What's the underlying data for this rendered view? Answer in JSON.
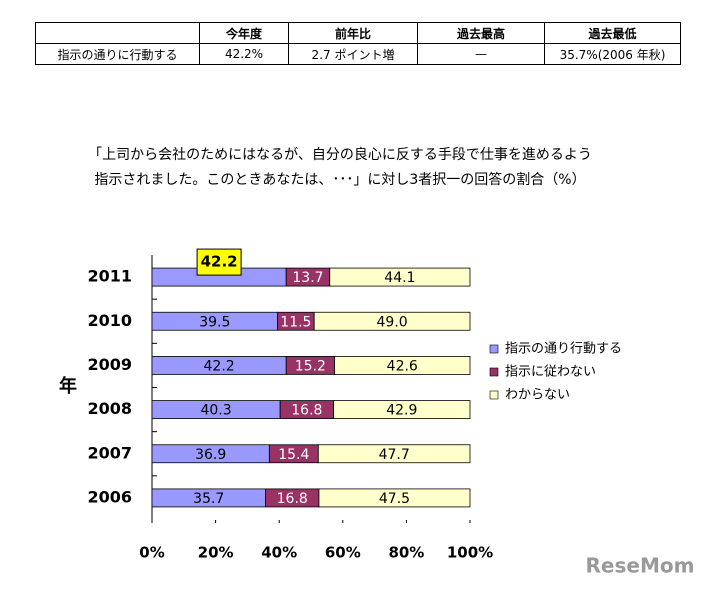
{
  "table": {
    "columns": [
      "今年度",
      "前年比",
      "過去最高",
      "過去最低"
    ],
    "rows": [
      [
        "指示の通りに行動する",
        "42.2%",
        "2.7 ポイント増",
        "—",
        "35.7%(2006 年秋)"
      ]
    ]
  },
  "chart_data": {
    "type": "stacked_bar_horizontal",
    "title": [
      "「上司から会社のためにはなるが、自分の良心に反する手段で仕事を進めるよう",
      "指示されました。このときあなたは、･･･」に対し3者択一の回答の割合（%）"
    ],
    "y_label": "年",
    "categories": [
      "2011",
      "2010",
      "2009",
      "2008",
      "2007",
      "2006"
    ],
    "series": [
      {
        "name": "指示の通り行動する",
        "color": "#9999ff",
        "values": [
          42.2,
          39.5,
          42.2,
          40.3,
          36.9,
          35.7
        ]
      },
      {
        "name": "指示に従わない",
        "color": "#993366",
        "values": [
          13.7,
          11.5,
          15.2,
          16.8,
          15.4,
          16.8
        ]
      },
      {
        "name": "わからない",
        "color": "#ffffcc",
        "values": [
          44.1,
          49.0,
          42.6,
          42.9,
          47.7,
          47.5
        ],
        "value_labels": [
          "44.1",
          "49.0",
          "42.6",
          "42.9",
          "47.7",
          "47.5"
        ]
      }
    ],
    "xlim": [
      0,
      100
    ],
    "xticks": [
      {
        "value": 0,
        "label": "0%"
      },
      {
        "value": 20,
        "label": "20%"
      },
      {
        "value": 40,
        "label": "40%"
      },
      {
        "value": 60,
        "label": "60%"
      },
      {
        "value": 80,
        "label": "80%"
      },
      {
        "value": 100,
        "label": "100%"
      }
    ]
  },
  "watermark": "ReseMom"
}
